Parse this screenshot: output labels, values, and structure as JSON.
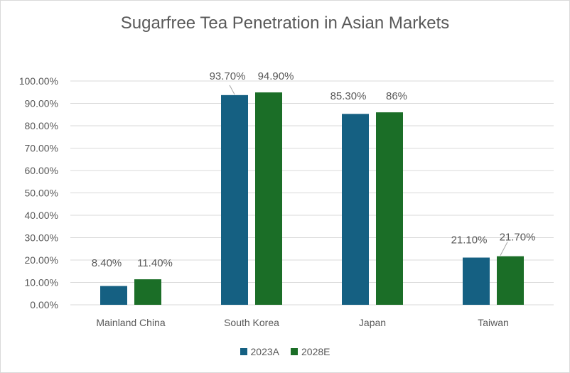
{
  "chart_data": {
    "type": "bar",
    "title": "Sugarfree Tea Penetration in Asian Markets",
    "xlabel": "",
    "ylabel": "",
    "categories": [
      "Mainland China",
      "South Korea",
      "Japan",
      "Taiwan"
    ],
    "series": [
      {
        "name": "2023A",
        "color": "#156082",
        "values": [
          8.4,
          93.7,
          85.3,
          21.1
        ],
        "labels": [
          "8.40%",
          "93.70%",
          "85.30%",
          "21.10%"
        ]
      },
      {
        "name": "2028E",
        "color": "#1b6e27",
        "values": [
          11.4,
          94.9,
          86.0,
          21.7
        ],
        "labels": [
          "11.40%",
          "94.90%",
          "86%",
          "21.70%"
        ]
      }
    ],
    "ylim": [
      0,
      100
    ],
    "yticks": [
      "0.00%",
      "10.00%",
      "20.00%",
      "30.00%",
      "40.00%",
      "50.00%",
      "60.00%",
      "70.00%",
      "80.00%",
      "90.00%",
      "100.00%"
    ],
    "grid": true,
    "legend_position": "bottom",
    "colors": {
      "gridline": "#d9d9d9",
      "axis_text": "#595959"
    }
  }
}
